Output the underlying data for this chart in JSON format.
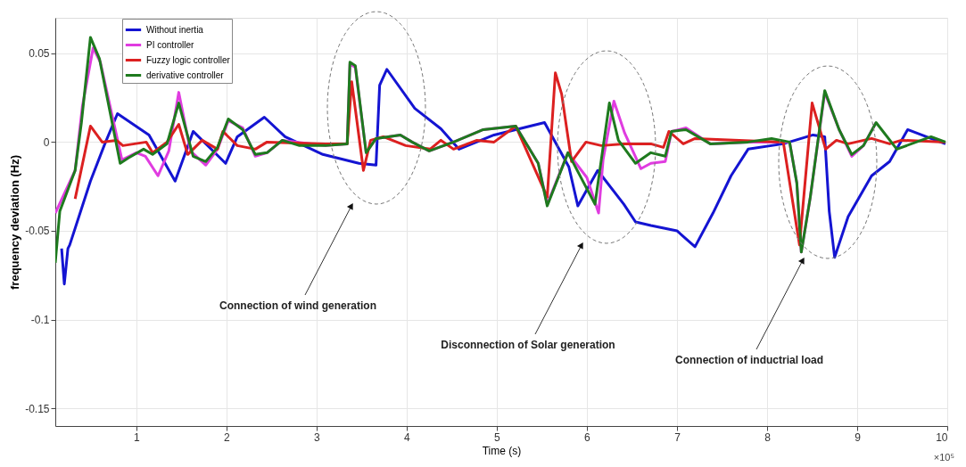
{
  "chart_data": {
    "type": "line",
    "xlabel": "Time (s)",
    "ylabel": "frequency deviation (Hz)",
    "xlim": [
      0.1,
      10
    ],
    "xticks": [
      1,
      2,
      3,
      4,
      5,
      6,
      7,
      8,
      9,
      10
    ],
    "ylim": [
      -0.16,
      0.07
    ],
    "yticks": [
      -0.15,
      -0.1,
      -0.05,
      0,
      0.05
    ],
    "grid": true,
    "legend": "top left",
    "line_style": "solid",
    "marker": "none",
    "annotations": [
      "Connection of wind generation",
      "Disconnection of Solar generation",
      "Connection of inductrial load",
      "×10⁵"
    ],
    "series": [
      {
        "name": "Without inertia",
        "color": "#1414d2",
        "x": [
          0.17,
          0.2,
          0.24,
          0.26,
          0.49,
          0.65,
          0.79,
          1.14,
          1.43,
          1.63,
          1.99,
          2.12,
          2.42,
          2.65,
          3.07,
          3.47,
          3.66,
          3.7,
          3.78,
          4.09,
          4.38,
          4.58,
          4.97,
          5.53,
          5.8,
          5.9,
          6.12,
          6.41,
          6.54,
          6.71,
          7.0,
          7.2,
          7.4,
          7.6,
          7.79,
          8.18,
          8.51,
          8.64,
          8.69,
          8.75,
          8.9,
          9.16,
          9.36,
          9.56,
          9.82,
          9.98
        ],
        "values": [
          -0.06,
          -0.08,
          -0.06,
          -0.058,
          -0.022,
          -0.001,
          0.016,
          0.004,
          -0.022,
          0.006,
          -0.012,
          0.003,
          0.014,
          0.003,
          -0.007,
          -0.012,
          -0.013,
          0.032,
          0.041,
          0.019,
          0.0075,
          -0.004,
          0.004,
          0.011,
          -0.014,
          -0.036,
          -0.016,
          -0.035,
          -0.045,
          -0.047,
          -0.05,
          -0.059,
          -0.04,
          -0.019,
          -0.004,
          -0.001,
          0.004,
          0.003,
          -0.039,
          -0.065,
          -0.042,
          -0.019,
          -0.011,
          0.007,
          0.002,
          -0.001
        ]
      },
      {
        "name": "PI controller",
        "color": "#e03ce0",
        "x": [
          0.1,
          0.32,
          0.4,
          0.52,
          0.6,
          0.84,
          1.0,
          1.1,
          1.24,
          1.36,
          1.47,
          1.6,
          1.77,
          1.9,
          2.02,
          2.18,
          2.32,
          2.45,
          2.62,
          3.1,
          3.34,
          3.37,
          3.43,
          3.55,
          3.66,
          3.93,
          4.06,
          4.25,
          4.52,
          4.85,
          5.21,
          5.46,
          5.56,
          5.79,
          6.0,
          6.13,
          6.18,
          6.3,
          6.42,
          6.6,
          6.71,
          6.87,
          6.94,
          7.1,
          7.37,
          7.79,
          8.25,
          8.33,
          8.38,
          8.48,
          8.64,
          8.8,
          8.94,
          9.07,
          9.21
        ],
        "values": [
          -0.04,
          -0.016,
          0.02,
          0.053,
          0.045,
          -0.01,
          -0.006,
          -0.008,
          -0.019,
          -0.005,
          0.028,
          -0.005,
          -0.013,
          -0.004,
          0.012,
          0.008,
          -0.008,
          -0.006,
          0.001,
          -0.002,
          -0.001,
          0.044,
          0.042,
          -0.006,
          0.002,
          0.004,
          0,
          -0.005,
          0,
          0.007,
          0.009,
          -0.012,
          -0.035,
          -0.006,
          -0.02,
          -0.04,
          -0.01,
          0.023,
          0.005,
          -0.015,
          -0.012,
          -0.011,
          0.006,
          0.008,
          -0.001,
          0,
          0,
          -0.023,
          -0.062,
          -0.031,
          0.028,
          0.007,
          -0.008,
          -0.002,
          0.011
        ]
      },
      {
        "name": "Fuzzy logic controller",
        "color": "#dc2020",
        "x": [
          0.32,
          0.49,
          0.62,
          0.78,
          0.85,
          1.11,
          1.18,
          1.34,
          1.47,
          1.57,
          1.73,
          1.9,
          1.96,
          2.12,
          2.32,
          2.45,
          3.1,
          3.34,
          3.39,
          3.52,
          3.6,
          3.74,
          3.99,
          4.26,
          4.38,
          4.52,
          4.78,
          4.97,
          5.21,
          5.56,
          5.65,
          5.72,
          5.83,
          5.99,
          6.16,
          6.41,
          6.71,
          6.85,
          6.91,
          7.07,
          7.2,
          8.18,
          8.36,
          8.5,
          8.65,
          8.77,
          8.9,
          9.16,
          9.36,
          9.49,
          9.98
        ],
        "values": [
          -0.032,
          0.009,
          0.0,
          0.001,
          -0.002,
          0.0,
          -0.006,
          0.0,
          0.01,
          -0.007,
          0.001,
          -0.004,
          0.006,
          -0.002,
          -0.004,
          0.0,
          -0.001,
          -0.001,
          0.034,
          -0.016,
          0.001,
          0.003,
          -0.002,
          -0.004,
          0.001,
          -0.004,
          0.001,
          0.0,
          0.009,
          -0.031,
          0.039,
          0.027,
          -0.011,
          0.0,
          -0.002,
          -0.001,
          -0.001,
          -0.003,
          0.006,
          -0.001,
          0.002,
          0.0,
          -0.058,
          0.022,
          -0.004,
          0.001,
          -0.001,
          0.002,
          -0.001,
          0.001,
          0.0
        ]
      },
      {
        "name": "derivative controller",
        "color": "#1e7a1e",
        "x": [
          0.1,
          0.15,
          0.32,
          0.39,
          0.49,
          0.59,
          0.82,
          0.91,
          1.08,
          1.18,
          1.34,
          1.47,
          1.63,
          1.77,
          1.9,
          2.02,
          2.18,
          2.32,
          2.45,
          2.62,
          2.81,
          3.1,
          3.34,
          3.37,
          3.43,
          3.55,
          3.66,
          3.93,
          4.06,
          4.25,
          4.52,
          4.85,
          5.21,
          5.46,
          5.56,
          5.79,
          6.09,
          6.25,
          6.35,
          6.54,
          6.71,
          6.87,
          6.94,
          7.1,
          7.37,
          7.79,
          8.05,
          8.25,
          8.33,
          8.38,
          8.48,
          8.64,
          8.8,
          8.94,
          9.07,
          9.21,
          9.44,
          9.82,
          9.98
        ],
        "values": [
          -0.068,
          -0.039,
          -0.016,
          0.011,
          0.059,
          0.047,
          -0.012,
          -0.009,
          -0.004,
          -0.007,
          -0.001,
          0.022,
          -0.008,
          -0.011,
          -0.003,
          0.013,
          0.007,
          -0.007,
          -0.006,
          0.001,
          -0.002,
          -0.002,
          -0.001,
          0.045,
          0.043,
          -0.006,
          0.002,
          0.004,
          0,
          -0.005,
          0,
          0.007,
          0.009,
          -0.012,
          -0.036,
          -0.006,
          -0.035,
          0.022,
          0.001,
          -0.012,
          -0.006,
          -0.008,
          0.006,
          0.007,
          -0.001,
          0,
          0.002,
          0,
          -0.023,
          -0.062,
          -0.031,
          0.029,
          0.007,
          -0.007,
          -0.002,
          0.011,
          -0.004,
          0.003,
          0
        ]
      }
    ]
  }
}
